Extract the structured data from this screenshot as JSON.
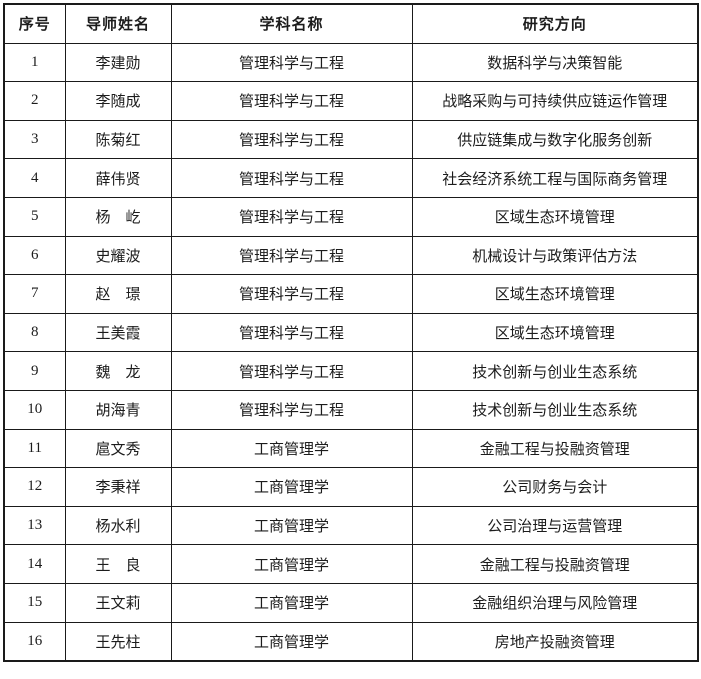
{
  "table": {
    "columns": [
      "序号",
      "导师姓名",
      "学科名称",
      "研究方向"
    ],
    "rows": [
      {
        "no": "1",
        "name": "李建勋",
        "discipline": "管理科学与工程",
        "direction": "数据科学与决策智能"
      },
      {
        "no": "2",
        "name": "李随成",
        "discipline": "管理科学与工程",
        "direction": "战略采购与可持续供应链运作管理"
      },
      {
        "no": "3",
        "name": "陈菊红",
        "discipline": "管理科学与工程",
        "direction": "供应链集成与数字化服务创新"
      },
      {
        "no": "4",
        "name": "薛伟贤",
        "discipline": "管理科学与工程",
        "direction": "社会经济系统工程与国际商务管理"
      },
      {
        "no": "5",
        "name": "杨　屹",
        "discipline": "管理科学与工程",
        "direction": "区域生态环境管理"
      },
      {
        "no": "6",
        "name": "史耀波",
        "discipline": "管理科学与工程",
        "direction": "机械设计与政策评估方法"
      },
      {
        "no": "7",
        "name": "赵　璟",
        "discipline": "管理科学与工程",
        "direction": "区域生态环境管理"
      },
      {
        "no": "8",
        "name": "王美霞",
        "discipline": "管理科学与工程",
        "direction": "区域生态环境管理"
      },
      {
        "no": "9",
        "name": "魏　龙",
        "discipline": "管理科学与工程",
        "direction": "技术创新与创业生态系统"
      },
      {
        "no": "10",
        "name": "胡海青",
        "discipline": "管理科学与工程",
        "direction": "技术创新与创业生态系统"
      },
      {
        "no": "11",
        "name": "扈文秀",
        "discipline": "工商管理学",
        "direction": "金融工程与投融资管理"
      },
      {
        "no": "12",
        "name": "李秉祥",
        "discipline": "工商管理学",
        "direction": "公司财务与会计"
      },
      {
        "no": "13",
        "name": "杨水利",
        "discipline": "工商管理学",
        "direction": "公司治理与运营管理"
      },
      {
        "no": "14",
        "name": "王　良",
        "discipline": "工商管理学",
        "direction": "金融工程与投融资管理"
      },
      {
        "no": "15",
        "name": "王文莉",
        "discipline": "工商管理学",
        "direction": "金融组织治理与风险管理"
      },
      {
        "no": "16",
        "name": "王先柱",
        "discipline": "工商管理学",
        "direction": "房地产投融资管理"
      }
    ],
    "colors": {
      "border": "#1a1a1a",
      "text": "#1c1c1c",
      "background": "#ffffff"
    }
  }
}
